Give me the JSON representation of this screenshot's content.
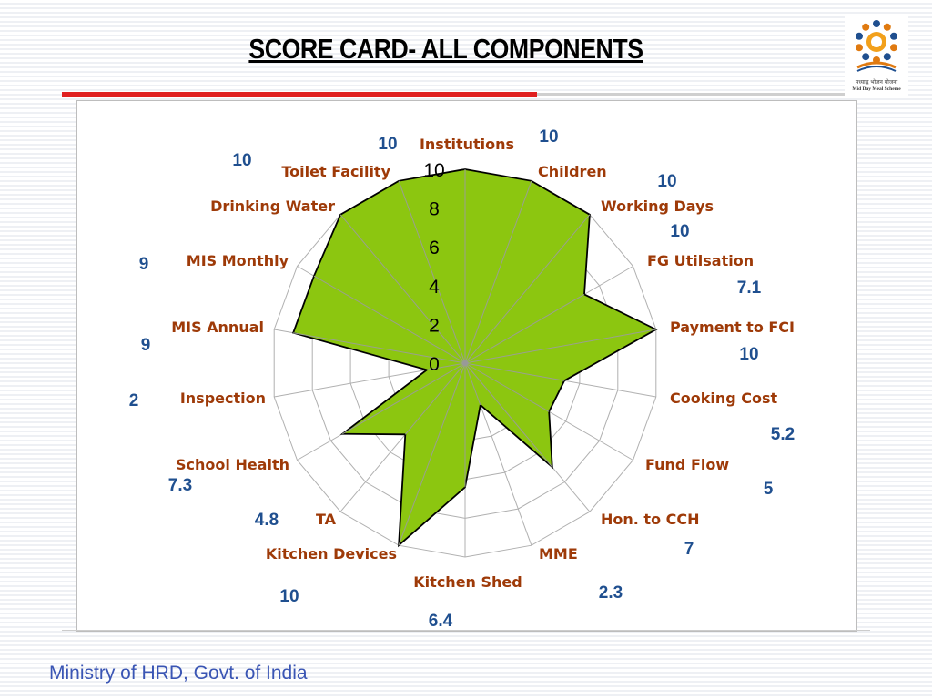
{
  "slide": {
    "title": "SCORE CARD- ALL COMPONENTS",
    "footer": "Ministry of HRD, Govt. of India"
  },
  "logo": {
    "line1": "मध्याह्न भोजन योजना",
    "line2": "Mid Day Meal Scheme",
    "icon": "mid-day-meal-logo"
  },
  "chart_data": {
    "type": "radar",
    "title": "",
    "categories": [
      "Institutions",
      "Children",
      "Working Days",
      "FG Utilsation",
      "Payment to FCI",
      "Cooking Cost",
      "Fund Flow",
      "Hon. to CCH",
      "MME",
      "Kitchen Shed",
      "Kitchen Devices",
      "TA",
      "School Health",
      "Inspection",
      "MIS Annual",
      "MIS Monthly",
      "Drinking Water",
      "Toilet Facility"
    ],
    "values": [
      10,
      10,
      10,
      7.1,
      10,
      5.2,
      5,
      7,
      2.3,
      6.4,
      10,
      4.8,
      7.3,
      2,
      9,
      9,
      10,
      10
    ],
    "value_labels": [
      "10",
      "10",
      "10",
      "7.1",
      "10",
      "5.2",
      "5",
      "7",
      "2.3",
      "6.4",
      "10",
      "4.8",
      "7.3",
      "2",
      "9",
      "9",
      "10",
      "10"
    ],
    "rlim": [
      0,
      10
    ],
    "ticks": [
      0,
      2,
      4,
      6,
      8,
      10
    ],
    "tick_labels": [
      "0",
      "2",
      "4",
      "6",
      "8",
      "10"
    ],
    "grid": true,
    "fill_color": "#8cc610",
    "line_color": "#000000",
    "grid_color": "#b0b0b0",
    "legend": "none"
  }
}
